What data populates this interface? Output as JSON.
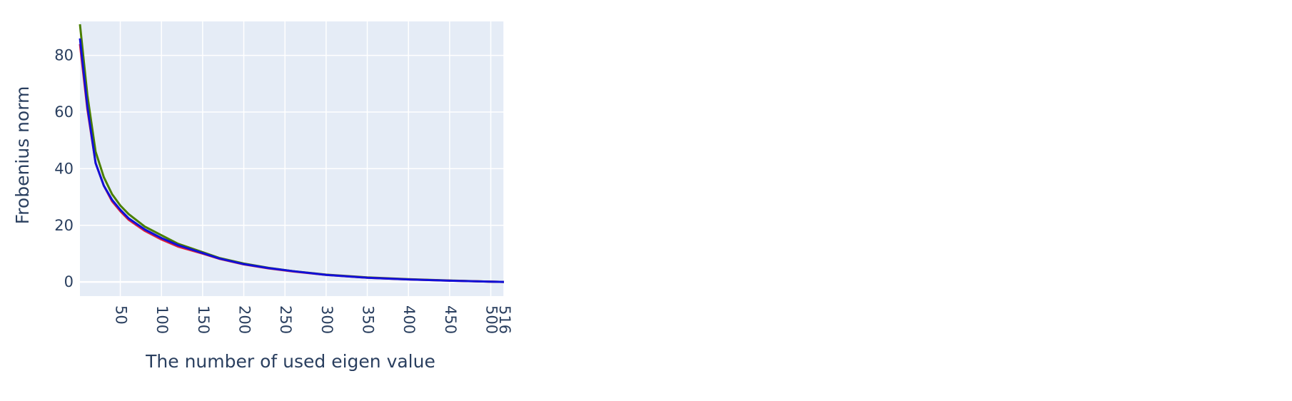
{
  "chart_data": {
    "type": "line",
    "title": "",
    "xlabel": "The number of used eigen value",
    "ylabel": "Frobenius norm",
    "xlim": [
      1,
      516
    ],
    "ylim": [
      -5,
      92
    ],
    "x_ticks": [
      50,
      100,
      150,
      200,
      250,
      300,
      350,
      400,
      450,
      500,
      516
    ],
    "y_ticks": [
      0,
      20,
      40,
      60,
      80
    ],
    "grid": true,
    "legend": "none",
    "colors": {
      "plot_background": "#E5ECF6",
      "grid": "#ffffff",
      "text": "#2a3f5f"
    },
    "series": [
      {
        "color": "#4a7f00",
        "x": [
          1,
          10,
          20,
          30,
          40,
          50,
          60,
          80,
          100,
          120,
          150,
          170,
          200,
          230,
          260,
          300,
          350,
          400,
          450,
          500,
          516
        ],
        "y": [
          91,
          66,
          46,
          37,
          31,
          27,
          24,
          19.5,
          16.5,
          13.5,
          10.5,
          8.5,
          6.5,
          5,
          3.8,
          2.6,
          1.6,
          1.0,
          0.5,
          0.1,
          0
        ]
      },
      {
        "color": "#e0203a",
        "x": [
          1,
          10,
          20,
          30,
          40,
          50,
          60,
          80,
          100,
          120,
          150,
          170,
          200,
          230,
          260,
          300,
          350,
          400,
          450,
          500,
          516
        ],
        "y": [
          84,
          61,
          42,
          34,
          28.5,
          25,
          22,
          18,
          15,
          12.5,
          10,
          8.2,
          6.2,
          4.8,
          3.7,
          2.5,
          1.5,
          0.9,
          0.45,
          0.1,
          0
        ]
      },
      {
        "color": "#1010d8",
        "x": [
          1,
          10,
          20,
          30,
          40,
          50,
          60,
          80,
          100,
          120,
          150,
          170,
          200,
          230,
          260,
          300,
          350,
          400,
          450,
          500,
          516
        ],
        "y": [
          86,
          62,
          42,
          34,
          29,
          25.5,
          22.5,
          18.5,
          15.5,
          13,
          10.2,
          8.3,
          6.3,
          4.9,
          3.8,
          2.5,
          1.5,
          0.9,
          0.45,
          0.1,
          0
        ]
      }
    ]
  }
}
